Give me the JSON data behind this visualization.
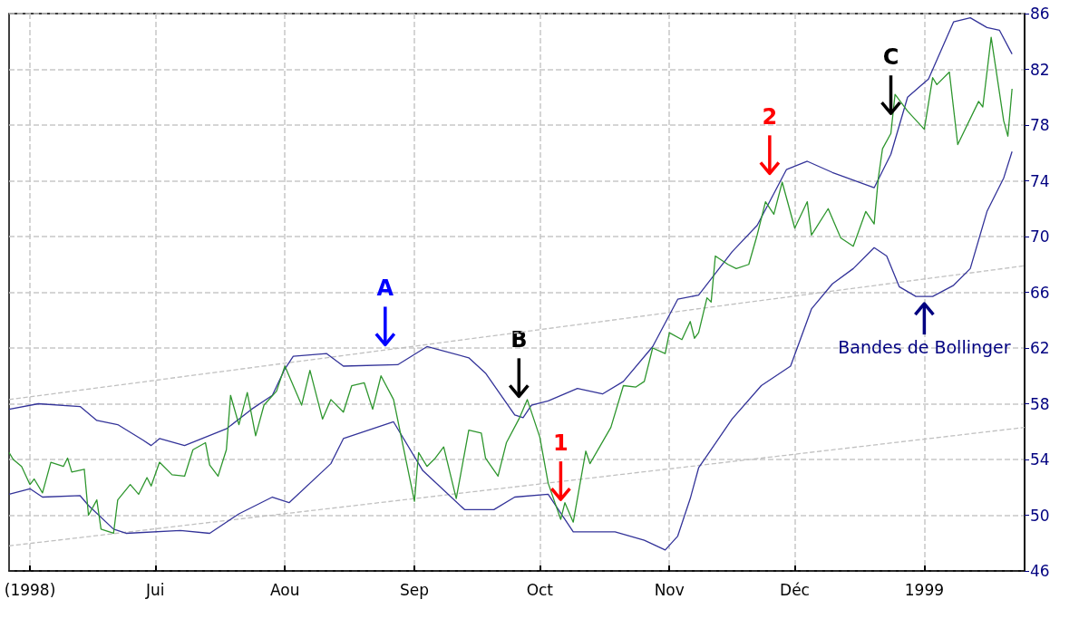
{
  "chart_data": {
    "type": "line",
    "marker": "none",
    "grid": true,
    "xlim": [
      "1998-05-27",
      "1999-01-25"
    ],
    "xticks": [
      {
        "value": "1998-06-01",
        "label": "(1998)"
      },
      {
        "value": "1998-07-01",
        "label": "Jui"
      },
      {
        "value": "1998-08-01",
        "label": "Aou"
      },
      {
        "value": "1998-09-01",
        "label": "Sep"
      },
      {
        "value": "1998-10-01",
        "label": "Oct"
      },
      {
        "value": "1998-11-01",
        "label": "Nov"
      },
      {
        "value": "1998-12-01",
        "label": "Déc"
      },
      {
        "value": "1999-01-01",
        "label": "1999"
      }
    ],
    "ylim": [
      46,
      86
    ],
    "yticks": [
      46,
      50,
      54,
      58,
      62,
      66,
      70,
      74,
      78,
      82,
      86
    ],
    "series": [
      {
        "type": "line",
        "color": "#c0c0c0",
        "line_style": "dashed",
        "x": [
          "1998-05-27",
          "1999-01-25"
        ],
        "values": [
          58.3,
          67.9
        ]
      },
      {
        "type": "line",
        "color": "#c0c0c0",
        "line_style": "dashed",
        "x": [
          "1998-05-27",
          "1999-01-25"
        ],
        "values": [
          47.8,
          56.3
        ]
      },
      {
        "type": "line",
        "color": "#333399",
        "x": [
          "1998-05-27",
          "1998-06-03",
          "1998-06-13",
          "1998-06-17",
          "1998-06-22",
          "1998-06-28",
          "1998-06-30",
          "1998-07-02",
          "1998-07-08",
          "1998-07-13",
          "1998-07-18",
          "1998-07-24",
          "1998-07-29",
          "1998-08-01",
          "1998-08-03",
          "1998-08-11",
          "1998-08-15",
          "1998-08-28",
          "1998-09-04",
          "1998-09-14",
          "1998-09-18",
          "1998-09-25",
          "1998-09-27",
          "1998-09-29",
          "1998-10-03",
          "1998-10-10",
          "1998-10-16",
          "1998-10-21",
          "1998-10-28",
          "1998-11-03",
          "1998-11-08",
          "1998-11-16",
          "1998-11-22",
          "1998-11-29",
          "1998-12-04",
          "1998-12-10",
          "1998-12-20",
          "1998-12-24",
          "1998-12-28",
          "1999-01-02",
          "1999-01-08",
          "1999-01-12",
          "1999-01-16",
          "1999-01-19",
          "1999-01-22"
        ],
        "values": [
          57.6,
          58.0,
          57.8,
          56.8,
          56.5,
          55.4,
          55.0,
          55.5,
          55.0,
          55.6,
          56.2,
          57.6,
          58.6,
          60.5,
          61.4,
          61.6,
          60.7,
          60.8,
          62.1,
          61.3,
          60.2,
          57.2,
          57.0,
          57.9,
          58.2,
          59.1,
          58.7,
          59.6,
          62.1,
          65.5,
          65.8,
          68.9,
          70.8,
          74.8,
          75.4,
          74.6,
          73.5,
          75.9,
          80.0,
          81.3,
          85.4,
          85.7,
          85.0,
          84.8,
          83.1
        ]
      },
      {
        "type": "line",
        "color": "#333399",
        "x": [
          "1998-05-27",
          "1998-06-01",
          "1998-06-04",
          "1998-06-13",
          "1998-06-15",
          "1998-06-21",
          "1998-06-24",
          "1998-07-07",
          "1998-07-14",
          "1998-07-21",
          "1998-07-29",
          "1998-08-02",
          "1998-08-12",
          "1998-08-15",
          "1998-08-27",
          "1998-09-03",
          "1998-09-13",
          "1998-09-20",
          "1998-09-25",
          "1998-10-03",
          "1998-10-09",
          "1998-10-19",
          "1998-10-26",
          "1998-10-31",
          "1998-11-03",
          "1998-11-06",
          "1998-11-08",
          "1998-11-16",
          "1998-11-23",
          "1998-11-30",
          "1998-12-05",
          "1998-12-10",
          "1998-12-15",
          "1998-12-20",
          "1998-12-23",
          "1998-12-26",
          "1998-12-30",
          "1999-01-03",
          "1999-01-08",
          "1999-01-12",
          "1999-01-16",
          "1999-01-20",
          "1999-01-22"
        ],
        "values": [
          51.5,
          51.9,
          51.3,
          51.4,
          50.7,
          49.0,
          48.7,
          48.9,
          48.7,
          50.1,
          51.3,
          50.9,
          53.7,
          55.5,
          56.7,
          53.2,
          50.4,
          50.4,
          51.3,
          51.5,
          48.8,
          48.8,
          48.2,
          47.5,
          48.5,
          51.2,
          53.4,
          56.9,
          59.3,
          60.7,
          64.8,
          66.6,
          67.7,
          69.2,
          68.6,
          66.4,
          65.7,
          65.7,
          66.5,
          67.7,
          71.8,
          74.2,
          76.1
        ]
      },
      {
        "type": "line",
        "color": "#2e962e",
        "x": [
          "1998-05-27",
          "1998-05-28",
          "1998-05-30",
          "1998-06-01",
          "1998-06-02",
          "1998-06-04",
          "1998-06-06",
          "1998-06-09",
          "1998-06-10",
          "1998-06-11",
          "1998-06-14",
          "1998-06-15",
          "1998-06-17",
          "1998-06-18",
          "1998-06-21",
          "1998-06-22",
          "1998-06-25",
          "1998-06-27",
          "1998-06-29",
          "1998-06-30",
          "1998-07-02",
          "1998-07-05",
          "1998-07-08",
          "1998-07-10",
          "1998-07-13",
          "1998-07-14",
          "1998-07-16",
          "1998-07-18",
          "1998-07-19",
          "1998-07-21",
          "1998-07-23",
          "1998-07-25",
          "1998-07-27",
          "1998-07-30",
          "1998-08-01",
          "1998-08-05",
          "1998-08-07",
          "1998-08-10",
          "1998-08-12",
          "1998-08-15",
          "1998-08-17",
          "1998-08-20",
          "1998-08-22",
          "1998-08-24",
          "1998-08-27",
          "1998-09-01",
          "1998-09-02",
          "1998-09-04",
          "1998-09-06",
          "1998-09-08",
          "1998-09-11",
          "1998-09-14",
          "1998-09-17",
          "1998-09-18",
          "1998-09-21",
          "1998-09-23",
          "1998-09-26",
          "1998-09-28",
          "1998-10-01",
          "1998-10-03",
          "1998-10-06",
          "1998-10-07",
          "1998-10-09",
          "1998-10-12",
          "1998-10-13",
          "1998-10-18",
          "1998-10-21",
          "1998-10-24",
          "1998-10-26",
          "1998-10-28",
          "1998-10-31",
          "1998-11-01",
          "1998-11-04",
          "1998-11-06",
          "1998-11-07",
          "1998-11-08",
          "1998-11-10",
          "1998-11-11",
          "1998-11-12",
          "1998-11-15",
          "1998-11-17",
          "1998-11-20",
          "1998-11-22",
          "1998-11-24",
          "1998-11-26",
          "1998-11-28",
          "1998-12-01",
          "1998-12-04",
          "1998-12-05",
          "1998-12-09",
          "1998-12-12",
          "1998-12-15",
          "1998-12-18",
          "1998-12-20",
          "1998-12-21",
          "1998-12-22",
          "1998-12-24",
          "1998-12-25",
          "1998-12-28",
          "1999-01-01",
          "1999-01-03",
          "1999-01-04",
          "1999-01-07",
          "1999-01-09",
          "1999-01-14",
          "1999-01-15",
          "1999-01-17",
          "1999-01-20",
          "1999-01-21",
          "1999-01-22"
        ],
        "values": [
          54.5,
          54.0,
          53.5,
          52.2,
          52.6,
          51.6,
          53.8,
          53.5,
          54.1,
          53.1,
          53.3,
          50.0,
          51.1,
          49.0,
          48.7,
          51.1,
          52.2,
          51.5,
          52.7,
          52.1,
          53.8,
          52.9,
          52.8,
          54.7,
          55.2,
          53.6,
          52.8,
          54.7,
          58.6,
          56.5,
          58.8,
          55.7,
          57.9,
          58.9,
          60.7,
          57.9,
          60.4,
          56.9,
          58.3,
          57.4,
          59.3,
          59.5,
          57.6,
          60.0,
          58.3,
          51.0,
          54.5,
          53.5,
          54.1,
          54.9,
          51.2,
          56.1,
          55.9,
          54.1,
          52.8,
          55.2,
          56.9,
          58.3,
          55.6,
          52.3,
          49.7,
          50.9,
          49.5,
          54.6,
          53.7,
          56.3,
          59.3,
          59.2,
          59.6,
          62.0,
          61.6,
          63.1,
          62.6,
          63.9,
          62.7,
          63.1,
          65.6,
          65.3,
          68.6,
          68.0,
          67.7,
          68.0,
          70.1,
          72.5,
          71.6,
          73.9,
          70.6,
          72.5,
          70.1,
          72.0,
          69.9,
          69.3,
          71.8,
          70.9,
          74.2,
          76.3,
          77.4,
          80.2,
          79.0,
          77.7,
          81.4,
          80.9,
          81.8,
          76.6,
          79.7,
          79.3,
          84.3,
          78.3,
          77.2,
          80.6
        ]
      }
    ],
    "annotations": [
      {
        "text": "A",
        "x": "1998-08-25",
        "y": 60.8
      },
      {
        "text": "B",
        "x": "1998-09-26",
        "y": 57.1
      },
      {
        "text": "1",
        "x": "1998-10-06",
        "y": 49.7
      },
      {
        "text": "2",
        "x": "1998-11-25",
        "y": 73.1
      },
      {
        "text": "C",
        "x": "1998-12-24",
        "y": 77.4
      },
      {
        "text": "Bandes de Bollinger",
        "x": "1999-01-01",
        "y": 65.7
      }
    ]
  }
}
